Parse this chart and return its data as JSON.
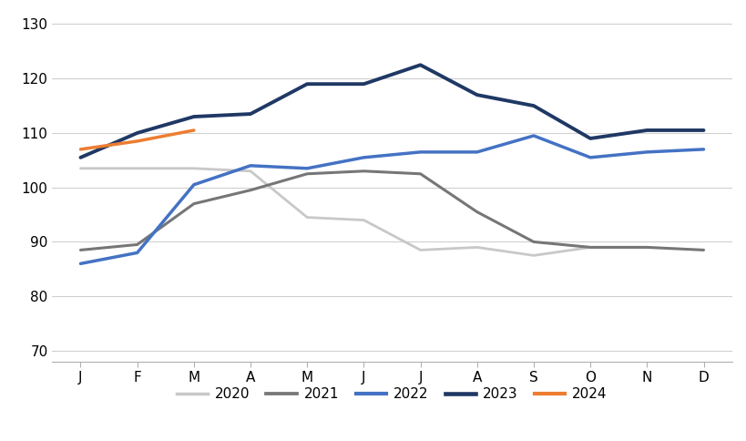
{
  "months": [
    "J",
    "F",
    "M",
    "A",
    "M",
    "J",
    "J",
    "A",
    "S",
    "O",
    "N",
    "D"
  ],
  "series": {
    "2020": [
      103.5,
      103.5,
      103.5,
      103.0,
      94.5,
      94.0,
      88.5,
      89.0,
      87.5,
      89.0,
      89.0,
      null
    ],
    "2021": [
      88.5,
      89.5,
      97.0,
      99.5,
      102.5,
      103.0,
      102.5,
      95.5,
      90.0,
      89.0,
      89.0,
      88.5
    ],
    "2022": [
      86.0,
      88.0,
      100.5,
      104.0,
      103.5,
      105.5,
      106.5,
      106.5,
      109.5,
      105.5,
      106.5,
      107.0
    ],
    "2023": [
      105.5,
      110.0,
      113.0,
      113.5,
      119.0,
      119.0,
      122.5,
      117.0,
      115.0,
      109.0,
      110.5,
      110.5
    ],
    "2024": [
      107.0,
      108.5,
      110.5,
      null,
      null,
      null,
      null,
      null,
      null,
      null,
      null,
      null
    ]
  },
  "colors": {
    "2020": "#c8c8c8",
    "2021": "#767676",
    "2022": "#4472c4",
    "2023": "#1f3864",
    "2024": "#ed7d31"
  },
  "linewidths": {
    "2020": 2.0,
    "2021": 2.2,
    "2022": 2.5,
    "2023": 2.8,
    "2024": 2.5
  },
  "ylim": [
    68,
    132
  ],
  "yticks": [
    70,
    80,
    90,
    100,
    110,
    120,
    130
  ],
  "background_color": "#ffffff",
  "grid_color": "#d0d0d0"
}
